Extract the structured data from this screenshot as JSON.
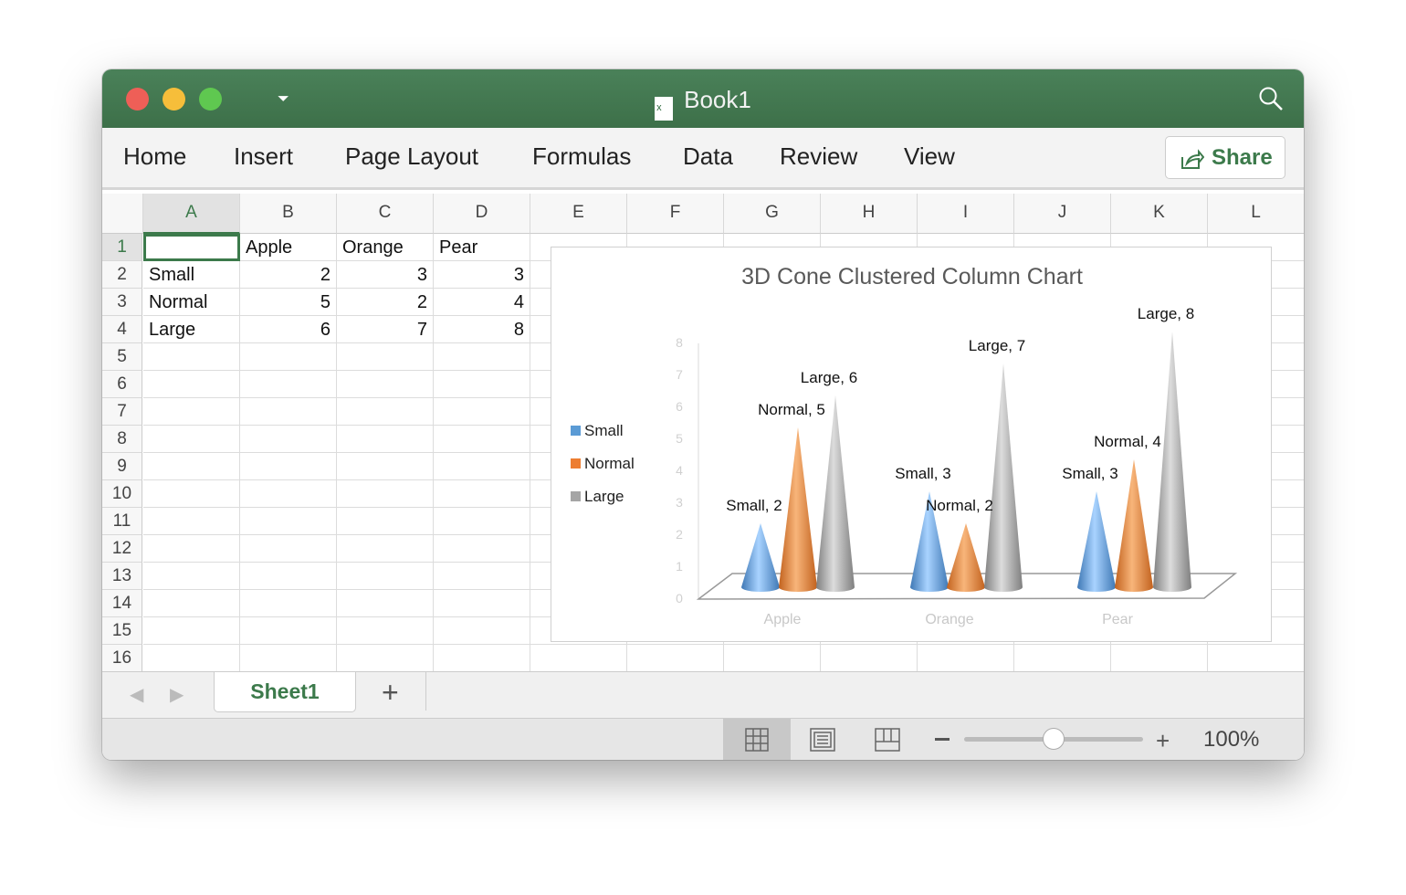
{
  "window": {
    "title": "Book1"
  },
  "ribbon": {
    "tabs": [
      "Home",
      "Insert",
      "Page Layout",
      "Formulas",
      "Data",
      "Review",
      "View"
    ],
    "share_label": "Share"
  },
  "sheet": {
    "columns": [
      "A",
      "B",
      "C",
      "D",
      "E",
      "F",
      "G",
      "H",
      "I",
      "J",
      "K",
      "L"
    ],
    "rows": [
      "1",
      "2",
      "3",
      "4",
      "5",
      "6",
      "7",
      "8",
      "9",
      "10",
      "11",
      "12",
      "13",
      "14",
      "15",
      "16"
    ],
    "cells": [
      [
        "",
        "Apple",
        "Orange",
        "Pear"
      ],
      [
        "Small",
        "2",
        "3",
        "3"
      ],
      [
        "Normal",
        "5",
        "2",
        "4"
      ],
      [
        "Large",
        "6",
        "7",
        "8"
      ]
    ],
    "selected_cell": "A1"
  },
  "sheet_tabs": {
    "active": "Sheet1",
    "add_label": "+"
  },
  "status": {
    "zoom": "100%",
    "zoom_level": 100
  },
  "colors": {
    "accent": "#3c7a4b",
    "small": "#5b9bd5",
    "normal": "#ed7d31",
    "large": "#a5a5a5"
  },
  "chart_data": {
    "type": "bar",
    "subtype": "3d-cone-clustered",
    "title": "3D Cone Clustered Column Chart",
    "categories": [
      "Apple",
      "Orange",
      "Pear"
    ],
    "series": [
      {
        "name": "Small",
        "values": [
          2,
          3,
          3
        ]
      },
      {
        "name": "Normal",
        "values": [
          5,
          2,
          4
        ]
      },
      {
        "name": "Large",
        "values": [
          6,
          7,
          8
        ]
      }
    ],
    "data_labels": [
      [
        "Small, 2",
        "Small, 3",
        "Small, 3"
      ],
      [
        "Normal, 5",
        "Normal, 2",
        "Normal, 4"
      ],
      [
        "Large, 6",
        "Large, 7",
        "Large, 8"
      ]
    ],
    "yticks": [
      "0",
      "1",
      "2",
      "3",
      "4",
      "5",
      "6",
      "7",
      "8"
    ],
    "ylim": [
      0,
      8
    ],
    "legend": "left",
    "grid": false
  }
}
